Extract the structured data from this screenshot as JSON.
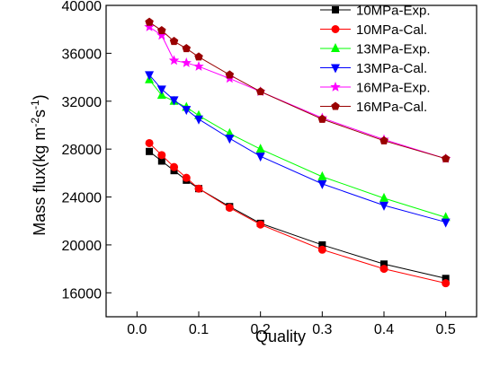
{
  "chart_data": {
    "type": "line",
    "title": "",
    "xlabel": "Quality",
    "ylabel_parts": [
      "Mass flux(kg m",
      "-2",
      "s",
      "-1",
      ")"
    ],
    "xlim": [
      -0.05,
      0.55
    ],
    "ylim": [
      14000,
      40000
    ],
    "xticks": [
      0.0,
      0.1,
      0.2,
      0.3,
      0.4,
      0.5
    ],
    "xtick_labels": [
      "0.0",
      "0.1",
      "0.2",
      "0.3",
      "0.4",
      "0.5"
    ],
    "yticks": [
      16000,
      20000,
      24000,
      28000,
      32000,
      36000,
      40000
    ],
    "ytick_labels": [
      "16000",
      "20000",
      "24000",
      "28000",
      "32000",
      "36000",
      "40000"
    ],
    "grid": false,
    "legend_position": "top-right",
    "series": [
      {
        "name": "10MPa-Exp.",
        "color": "#000000",
        "marker": "square",
        "x": [
          0.02,
          0.04,
          0.06,
          0.08,
          0.1,
          0.15,
          0.2,
          0.3,
          0.4,
          0.5
        ],
        "y": [
          27800,
          27000,
          26200,
          25400,
          24700,
          23200,
          21800,
          20000,
          18400,
          17200
        ]
      },
      {
        "name": "10MPa-Cal.",
        "color": "#ff0000",
        "marker": "circle",
        "x": [
          0.02,
          0.04,
          0.06,
          0.08,
          0.1,
          0.15,
          0.2,
          0.3,
          0.4,
          0.5
        ],
        "y": [
          28500,
          27500,
          26500,
          25600,
          24700,
          23100,
          21700,
          19600,
          18000,
          16800
        ]
      },
      {
        "name": "13MPa-Exp.",
        "color": "#00ff00",
        "marker": "triangle-up",
        "x": [
          0.02,
          0.04,
          0.06,
          0.08,
          0.1,
          0.15,
          0.2,
          0.3,
          0.4,
          0.5
        ],
        "y": [
          33800,
          32500,
          32000,
          31500,
          30800,
          29300,
          28000,
          25700,
          23900,
          22300
        ]
      },
      {
        "name": "13MPa-Cal.",
        "color": "#0000ff",
        "marker": "triangle-down",
        "x": [
          0.02,
          0.04,
          0.06,
          0.08,
          0.1,
          0.15,
          0.2,
          0.3,
          0.4,
          0.5
        ],
        "y": [
          34200,
          33000,
          32100,
          31300,
          30500,
          28900,
          27400,
          25100,
          23300,
          21900
        ]
      },
      {
        "name": "16MPa-Exp.",
        "color": "#ff00ff",
        "marker": "star",
        "x": [
          0.02,
          0.04,
          0.06,
          0.08,
          0.1,
          0.15,
          0.2,
          0.3,
          0.4,
          0.5
        ],
        "y": [
          38200,
          37500,
          35400,
          35200,
          34900,
          33900,
          32800,
          30600,
          28800,
          27200
        ]
      },
      {
        "name": "16MPa-Cal.",
        "color": "#990000",
        "marker": "pentagon",
        "x": [
          0.02,
          0.04,
          0.06,
          0.08,
          0.1,
          0.15,
          0.2,
          0.3,
          0.4,
          0.5
        ],
        "y": [
          38600,
          37900,
          37000,
          36400,
          35700,
          34200,
          32800,
          30500,
          28700,
          27200
        ]
      }
    ]
  }
}
